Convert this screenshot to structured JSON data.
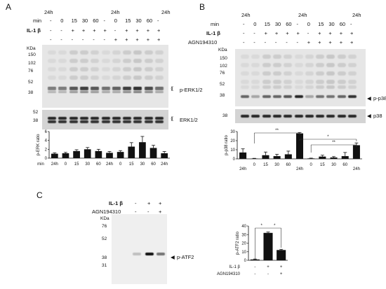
{
  "panelA": {
    "letter": "A",
    "header_24h": [
      "24h",
      "24h",
      "24h"
    ],
    "min_label": "min",
    "min_values": [
      "-",
      "0",
      "15",
      "30",
      "60",
      "-",
      "0",
      "15",
      "30",
      "60",
      "-"
    ],
    "il_label": "IL-1 β",
    "il_values": [
      "-",
      "-",
      "+",
      "+",
      "+",
      "+",
      "-",
      "+",
      "+",
      "+",
      "+"
    ],
    "agn_values": [
      "-",
      "-",
      "-",
      "-",
      "-",
      "-",
      "+",
      "+",
      "+",
      "+",
      "+"
    ],
    "kda": "KDa",
    "markers": [
      "150",
      "102",
      "76",
      "52",
      "38"
    ],
    "marker2": [
      "52",
      "38"
    ],
    "band1": "p-ERK1/2",
    "band2": "ERK1/2",
    "xaxis_mins": [
      "min",
      "24h",
      "0",
      "15",
      "30",
      "60",
      "24h",
      "0",
      "15",
      "30",
      "60",
      "24h"
    ]
  },
  "panelB": {
    "letter": "B",
    "header_24h": [
      "24h",
      "24h",
      "24h"
    ],
    "min_label": "min",
    "min_values": [
      "-",
      "0",
      "15",
      "30",
      "60",
      "-",
      "0",
      "15",
      "30",
      "60",
      "-"
    ],
    "il_label": "IL-1 β",
    "il_values": [
      "-",
      "-",
      "+",
      "+",
      "+",
      "+",
      "-",
      "+",
      "+",
      "+",
      "+"
    ],
    "agn_label": "AGN194310",
    "agn_values": [
      "-",
      "-",
      "-",
      "-",
      "-",
      "-",
      "+",
      "+",
      "+",
      "+",
      "+"
    ],
    "kda": "KDa",
    "markers": [
      "150",
      "102",
      "76",
      "52",
      "38"
    ],
    "marker2": "38",
    "band1": "p-p38",
    "band2": "p38",
    "sig1": "**",
    "sig2": "*",
    "sig3": "**",
    "xaxis": [
      "24h",
      "0",
      "15",
      "30",
      "60",
      "24h",
      "0",
      "15",
      "30",
      "60",
      "24h"
    ]
  },
  "panelC": {
    "letter": "C",
    "il_label": "IL-1 β",
    "il_values": [
      "-",
      "+",
      "+"
    ],
    "agn_label": "AGN194310",
    "agn_values": [
      "-",
      "-",
      "+"
    ],
    "kda": "KDa",
    "markers": [
      "76",
      "52",
      "38",
      "31"
    ],
    "band": "p-ATF2",
    "sig1": "*",
    "sig2": "*",
    "x_il_label": "IL-1 β",
    "x_il": [
      "-",
      "+",
      "+"
    ],
    "x_agn_label": "AGN194310",
    "x_agn": [
      "-",
      "-",
      "+"
    ]
  },
  "chart_data": [
    {
      "type": "bar",
      "ylabel": "p-ERK ratio",
      "ylim": [
        0,
        6
      ],
      "yticks": [
        "6",
        "4",
        "2",
        "0"
      ],
      "categories": [
        "24h",
        "0",
        "15",
        "30",
        "60",
        "24h",
        "0",
        "15",
        "30",
        "60",
        "24h"
      ],
      "values": [
        1.0,
        1.1,
        1.6,
        2.0,
        1.6,
        1.2,
        1.4,
        2.6,
        3.6,
        2.3,
        1.1
      ],
      "errors": [
        0.2,
        0.2,
        0.3,
        0.4,
        0.4,
        0.3,
        0.3,
        0.9,
        1.3,
        0.6,
        0.4
      ]
    },
    {
      "type": "bar",
      "ylabel": "p-p38 ratio",
      "ylim": [
        0,
        30
      ],
      "yticks": [
        "30",
        "20",
        "10",
        "0"
      ],
      "categories": [
        "24h",
        "0",
        "15",
        "30",
        "60",
        "24h",
        "0",
        "15",
        "30",
        "60",
        "24h"
      ],
      "values": [
        7.0,
        0.3,
        4.0,
        3.0,
        5.0,
        28.0,
        0.5,
        2.5,
        1.5,
        3.0,
        15.0
      ],
      "errors": [
        4.0,
        0.3,
        3.5,
        2.0,
        3.5,
        1.0,
        0.3,
        1.5,
        1.0,
        4.0,
        2.5
      ]
    },
    {
      "type": "bar",
      "ylabel": "p-ATF2 ratio",
      "ylim": [
        0,
        40
      ],
      "yticks": [
        "40",
        "30",
        "20",
        "10",
        "0"
      ],
      "categories": [
        "-/-",
        "+/-",
        "+/+"
      ],
      "values": [
        1.0,
        32.0,
        12.0
      ],
      "errors": [
        0.5,
        1.0,
        0.8
      ]
    }
  ]
}
